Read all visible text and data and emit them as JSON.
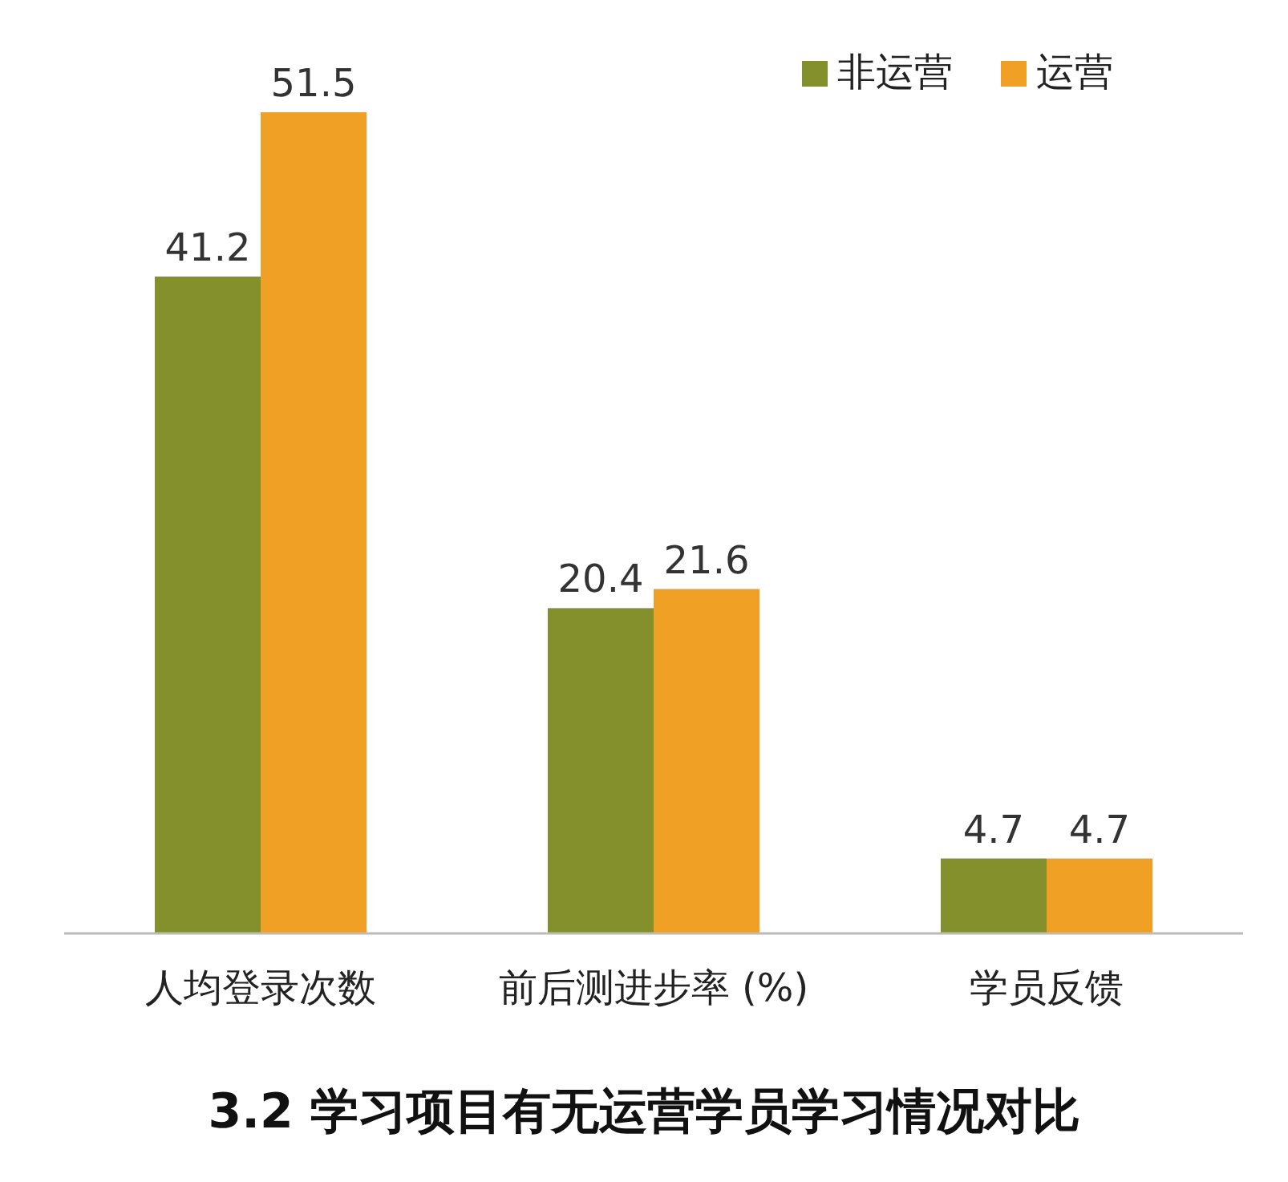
{
  "chart_data": {
    "type": "bar",
    "title": "3.2 学习项目有无运营学员学习情况对比",
    "categories": [
      "人均登录次数",
      "前后测进步率 (%)",
      "学员反馈"
    ],
    "series": [
      {
        "name": "非运营",
        "color": "#84902c",
        "values": [
          41.2,
          20.4,
          4.7
        ]
      },
      {
        "name": "运营",
        "color": "#f0a024",
        "values": [
          51.5,
          21.6,
          4.7
        ]
      }
    ],
    "data_labels": true,
    "legend": "top right"
  }
}
